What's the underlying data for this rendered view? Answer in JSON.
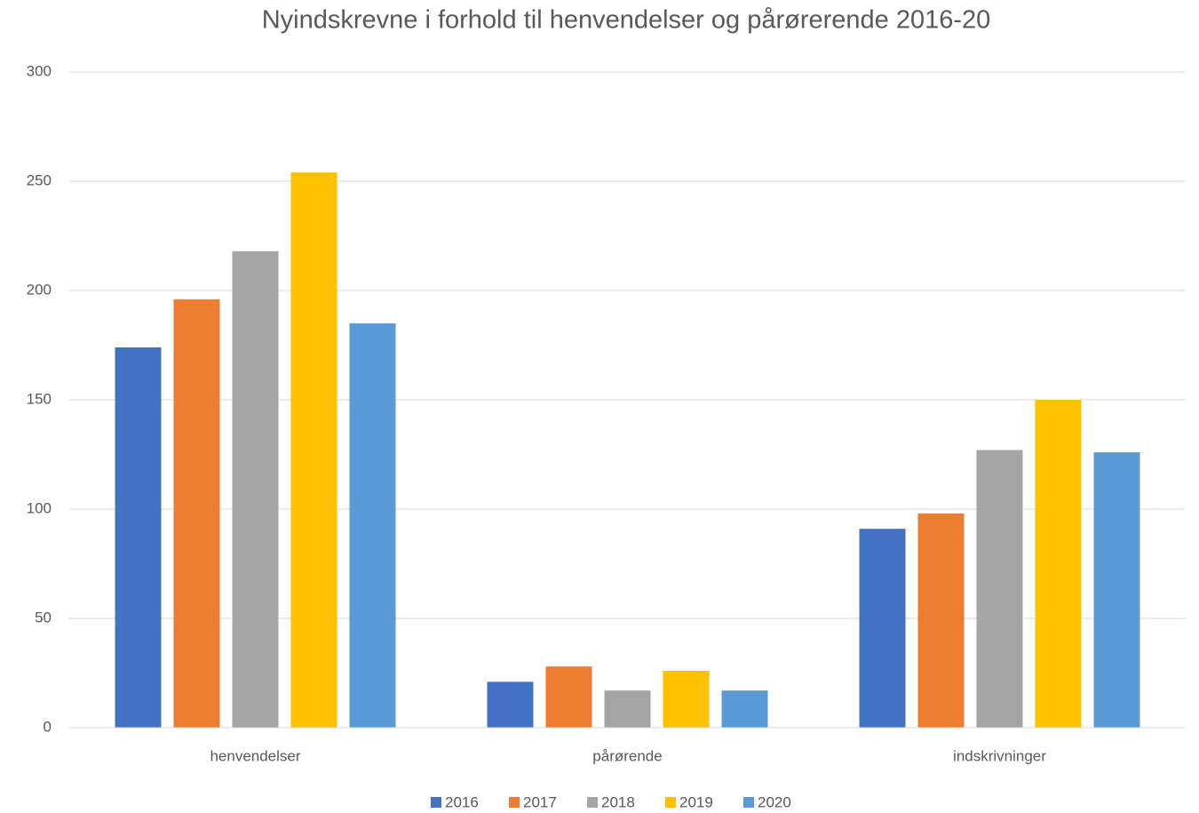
{
  "chart_data": {
    "type": "bar",
    "title": "Nyindskrevne i forhold til henvendelser og pårørerende 2016-20",
    "categories": [
      "henvendelser",
      "pårørende",
      "indskrivninger"
    ],
    "series": [
      {
        "name": "2016",
        "color": "#4472c4",
        "values": [
          174,
          21,
          91
        ]
      },
      {
        "name": "2017",
        "color": "#ed7d31",
        "values": [
          196,
          28,
          98
        ]
      },
      {
        "name": "2018",
        "color": "#a5a5a5",
        "values": [
          218,
          17,
          127
        ]
      },
      {
        "name": "2019",
        "color": "#ffc000",
        "values": [
          254,
          26,
          150
        ]
      },
      {
        "name": "2020",
        "color": "#5b9bd5",
        "values": [
          185,
          17,
          126
        ]
      }
    ],
    "ylim": [
      0,
      300
    ],
    "yticks": [
      0,
      50,
      100,
      150,
      200,
      250,
      300
    ],
    "grid": true,
    "legend": "bottom"
  }
}
